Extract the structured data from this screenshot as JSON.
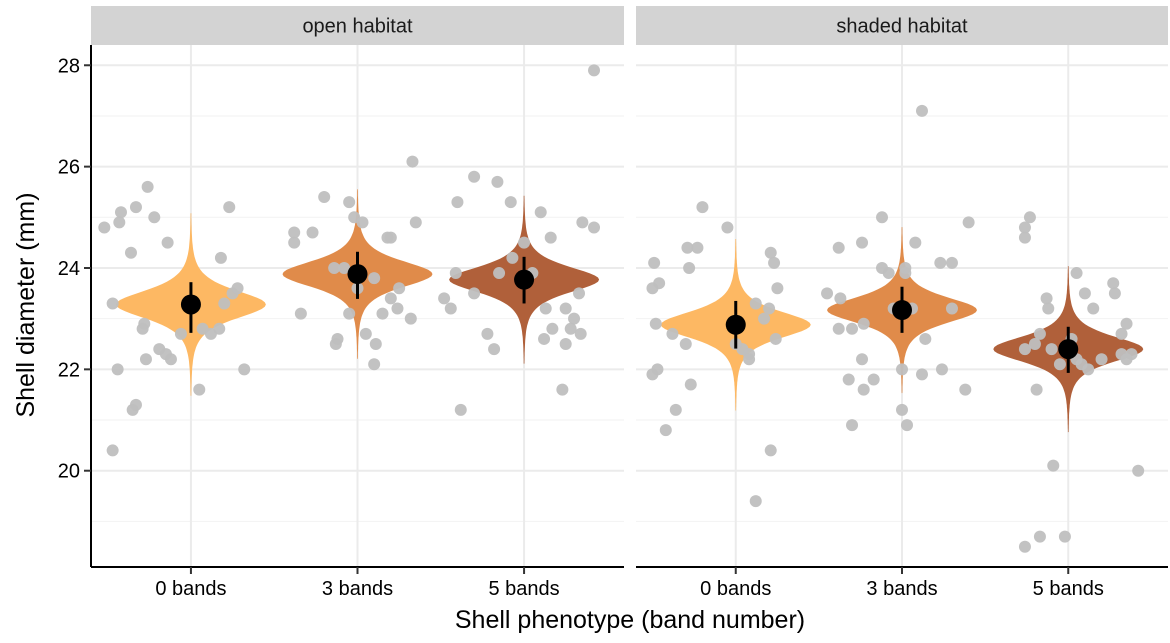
{
  "chart_data": {
    "type": "scatter",
    "xlabel": "Shell phenotype (band number)",
    "ylabel": "Shell diameter (mm)",
    "ylim": [
      18.1,
      28.4
    ],
    "y_ticks": [
      20,
      22,
      24,
      26,
      28
    ],
    "categories": [
      "0 bands",
      "3 bands",
      "5 bands"
    ],
    "grid": true,
    "colors": {
      "0 bands": "#fdb863",
      "3 bands": "#e08b4a",
      "5 bands": "#b0603a",
      "raw_points": "#bfbfbf",
      "summary": "#000000",
      "strip": "#d3d3d3"
    },
    "panels": [
      {
        "label": "open habitat",
        "groups": [
          {
            "category": "0 bands",
            "mean": 23.28,
            "ci_low": 22.72,
            "ci_high": 23.72,
            "points": [
              [
                -0.52,
                24.8
              ],
              [
                -0.47,
                23.3
              ],
              [
                -0.42,
                25.1
              ],
              [
                -0.43,
                24.9
              ],
              [
                -0.33,
                25.2
              ],
              [
                -0.26,
                25.6
              ],
              [
                -0.22,
                25.0
              ],
              [
                -0.14,
                24.5
              ],
              [
                0.18,
                24.2
              ],
              [
                0.23,
                25.2
              ],
              [
                -0.36,
                24.3
              ],
              [
                0.12,
                22.7
              ],
              [
                0.07,
                22.8
              ],
              [
                -0.44,
                22.0
              ],
              [
                -0.35,
                21.2
              ],
              [
                -0.33,
                21.3
              ],
              [
                -0.47,
                20.4
              ],
              [
                -0.27,
                22.2
              ],
              [
                -0.19,
                22.4
              ],
              [
                -0.15,
                22.3
              ],
              [
                -0.06,
                22.7
              ],
              [
                0.05,
                21.6
              ],
              [
                0.25,
                23.5
              ],
              [
                0.28,
                23.6
              ],
              [
                0.2,
                23.3
              ],
              [
                -0.28,
                22.9
              ],
              [
                0.32,
                22.0
              ],
              [
                -0.12,
                22.2
              ],
              [
                0.17,
                22.8
              ],
              [
                -0.29,
                22.8
              ]
            ]
          },
          {
            "category": "3 bands",
            "mean": 23.88,
            "ci_low": 23.39,
            "ci_high": 24.32,
            "points": [
              [
                -0.38,
                24.5
              ],
              [
                -0.38,
                24.7
              ],
              [
                -0.27,
                24.7
              ],
              [
                -0.2,
                25.4
              ],
              [
                -0.05,
                25.3
              ],
              [
                -0.02,
                25.0
              ],
              [
                0.03,
                24.9
              ],
              [
                0.18,
                24.6
              ],
              [
                0.2,
                24.6
              ],
              [
                0.35,
                24.9
              ],
              [
                0.25,
                23.6
              ],
              [
                -0.34,
                23.1
              ],
              [
                -0.14,
                24.0
              ],
              [
                -0.08,
                24.0
              ],
              [
                0.1,
                23.8
              ],
              [
                0.15,
                23.1
              ],
              [
                0.24,
                23.2
              ],
              [
                0.32,
                23.0
              ],
              [
                -0.13,
                22.5
              ],
              [
                -0.12,
                22.6
              ],
              [
                0.05,
                22.7
              ],
              [
                0.11,
                22.5
              ],
              [
                0.1,
                22.1
              ],
              [
                0.2,
                23.4
              ],
              [
                0.33,
                26.1
              ],
              [
                -0.05,
                23.1
              ],
              [
                0.0,
                23.6
              ]
            ]
          },
          {
            "category": "5 bands",
            "mean": 23.77,
            "ci_low": 23.3,
            "ci_high": 24.22,
            "points": [
              [
                -0.48,
                23.4
              ],
              [
                -0.41,
                23.9
              ],
              [
                -0.4,
                25.3
              ],
              [
                -0.3,
                25.8
              ],
              [
                -0.16,
                25.7
              ],
              [
                -0.08,
                25.3
              ],
              [
                0.0,
                24.5
              ],
              [
                0.1,
                25.1
              ],
              [
                0.16,
                24.6
              ],
              [
                0.35,
                24.9
              ],
              [
                0.42,
                24.8
              ],
              [
                -0.3,
                23.5
              ],
              [
                -0.07,
                24.2
              ],
              [
                -0.15,
                23.9
              ],
              [
                0.05,
                23.9
              ],
              [
                0.13,
                23.2
              ],
              [
                0.25,
                23.2
              ],
              [
                0.3,
                23.0
              ],
              [
                0.33,
                23.5
              ],
              [
                -0.22,
                22.7
              ],
              [
                -0.18,
                22.4
              ],
              [
                0.12,
                22.6
              ],
              [
                0.17,
                22.8
              ],
              [
                0.25,
                22.5
              ],
              [
                0.28,
                22.8
              ],
              [
                0.34,
                22.7
              ],
              [
                -0.38,
                21.2
              ],
              [
                0.23,
                21.6
              ],
              [
                0.42,
                27.9
              ],
              [
                -0.44,
                23.2
              ]
            ]
          }
        ]
      },
      {
        "label": "shaded habitat",
        "groups": [
          {
            "category": "0 bands",
            "mean": 22.88,
            "ci_low": 22.41,
            "ci_high": 23.35,
            "points": [
              [
                -0.5,
                23.6
              ],
              [
                -0.49,
                24.1
              ],
              [
                -0.46,
                23.7
              ],
              [
                -0.29,
                24.4
              ],
              [
                -0.23,
                24.4
              ],
              [
                -0.28,
                24.0
              ],
              [
                -0.2,
                25.2
              ],
              [
                -0.05,
                24.8
              ],
              [
                0.21,
                24.3
              ],
              [
                0.23,
                24.1
              ],
              [
                0.25,
                23.6
              ],
              [
                0.12,
                23.3
              ],
              [
                0.17,
                23.0
              ],
              [
                0.2,
                23.2
              ],
              [
                -0.48,
                22.9
              ],
              [
                -0.47,
                22.0
              ],
              [
                -0.5,
                21.9
              ],
              [
                -0.38,
                22.7
              ],
              [
                -0.3,
                22.5
              ],
              [
                -0.27,
                21.7
              ],
              [
                -0.36,
                21.2
              ],
              [
                -0.42,
                20.8
              ],
              [
                0.04,
                22.4
              ],
              [
                0.08,
                22.3
              ],
              [
                0.0,
                22.5
              ],
              [
                0.08,
                22.2
              ],
              [
                0.24,
                22.6
              ],
              [
                0.21,
                20.4
              ],
              [
                0.12,
                19.4
              ]
            ]
          },
          {
            "category": "3 bands",
            "mean": 23.17,
            "ci_low": 22.72,
            "ci_high": 23.63,
            "points": [
              [
                -0.38,
                24.4
              ],
              [
                -0.24,
                24.5
              ],
              [
                -0.12,
                25.0
              ],
              [
                -0.12,
                24.0
              ],
              [
                -0.08,
                23.9
              ],
              [
                0.02,
                24.0
              ],
              [
                0.08,
                24.5
              ],
              [
                0.02,
                23.9
              ],
              [
                0.23,
                24.1
              ],
              [
                0.3,
                24.1
              ],
              [
                0.4,
                24.9
              ],
              [
                -0.45,
                23.5
              ],
              [
                -0.37,
                23.4
              ],
              [
                -0.38,
                22.8
              ],
              [
                -0.3,
                22.8
              ],
              [
                -0.23,
                22.9
              ],
              [
                -0.24,
                22.2
              ],
              [
                -0.05,
                23.2
              ],
              [
                0.06,
                23.2
              ],
              [
                0.14,
                22.6
              ],
              [
                0.3,
                23.2
              ],
              [
                -0.32,
                21.8
              ],
              [
                -0.17,
                21.8
              ],
              [
                -0.23,
                21.6
              ],
              [
                -0.3,
                20.9
              ],
              [
                0.0,
                22.0
              ],
              [
                0.0,
                21.2
              ],
              [
                0.03,
                20.9
              ],
              [
                0.12,
                21.9
              ],
              [
                0.24,
                22.0
              ],
              [
                0.38,
                21.6
              ],
              [
                0.12,
                27.1
              ]
            ]
          },
          {
            "category": "5 bands",
            "mean": 22.4,
            "ci_low": 21.93,
            "ci_high": 22.84,
            "points": [
              [
                -0.23,
                25.0
              ],
              [
                -0.26,
                24.8
              ],
              [
                -0.26,
                24.6
              ],
              [
                -0.26,
                22.4
              ],
              [
                -0.13,
                23.4
              ],
              [
                -0.12,
                23.2
              ],
              [
                0.05,
                23.9
              ],
              [
                0.1,
                23.5
              ],
              [
                0.27,
                23.7
              ],
              [
                0.28,
                23.5
              ],
              [
                0.15,
                23.2
              ],
              [
                0.32,
                22.7
              ],
              [
                0.35,
                22.9
              ],
              [
                0.32,
                22.3
              ],
              [
                0.38,
                22.3
              ],
              [
                -0.17,
                22.7
              ],
              [
                -0.2,
                22.5
              ],
              [
                -0.1,
                22.4
              ],
              [
                -0.05,
                22.1
              ],
              [
                0.02,
                22.6
              ],
              [
                0.05,
                22.2
              ],
              [
                0.08,
                22.1
              ],
              [
                0.12,
                22.0
              ],
              [
                0.2,
                22.2
              ],
              [
                -0.19,
                21.6
              ],
              [
                -0.09,
                20.1
              ],
              [
                -0.02,
                18.7
              ],
              [
                -0.17,
                18.7
              ],
              [
                -0.26,
                18.5
              ],
              [
                0.42,
                20.0
              ],
              [
                0.35,
                22.2
              ]
            ]
          }
        ]
      }
    ]
  }
}
